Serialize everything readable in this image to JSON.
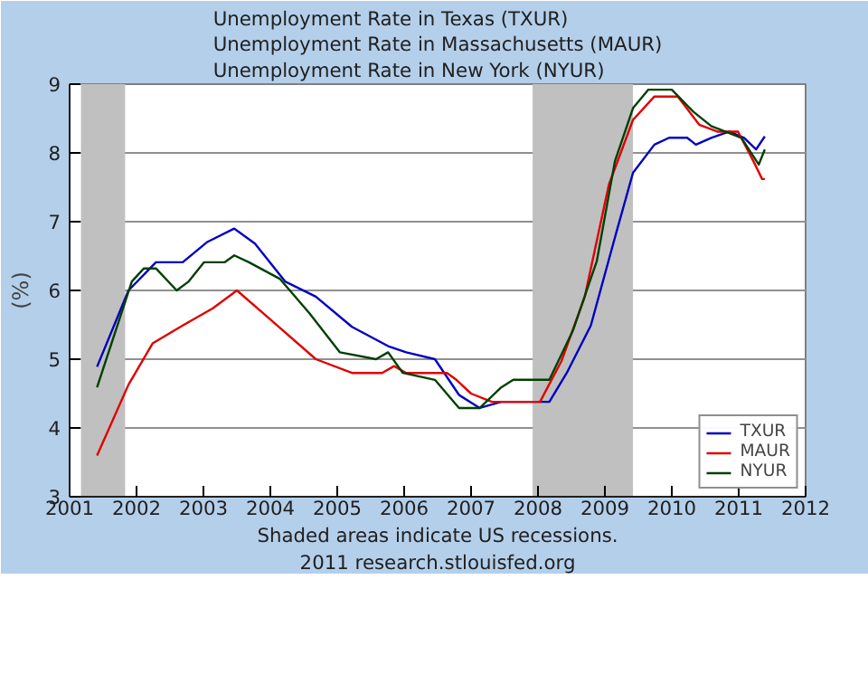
{
  "chart_data": {
    "type": "line",
    "title": "Unemployment Rate in Texas (TXUR)\nUnemployment Rate in Massachusetts (MAUR)\nUnemployment Rate in New York (NYUR)",
    "ylabel": "(%)",
    "annotations": [
      "Shaded areas indicate US recessions.",
      "2011 research.stlouisfed.org"
    ],
    "xlim": [
      2001,
      2012
    ],
    "xticks": [
      2001,
      2002,
      2003,
      2004,
      2005,
      2006,
      2007,
      2008,
      2009,
      2010,
      2011,
      2012
    ],
    "ylim": [
      3,
      9
    ],
    "yticks": [
      3,
      4,
      5,
      6,
      7,
      8,
      9
    ],
    "grid": "y",
    "legend": "bottom right",
    "line_style": "solid",
    "bands": [
      {
        "axis": "x",
        "from": 2001.17,
        "to": 2001.83,
        "color": "#c0c0c0"
      },
      {
        "axis": "x",
        "from": 2007.92,
        "to": 2009.42,
        "color": "#c0c0c0"
      }
    ],
    "series": [
      {
        "name": "TXUR",
        "color": "#0000c0",
        "x": [
          2001.41,
          2001.88,
          2002.29,
          2002.69,
          2003.05,
          2003.46,
          2003.77,
          2004.22,
          2004.68,
          2005.22,
          2005.76,
          2006.03,
          2006.46,
          2006.82,
          2007.13,
          2007.45,
          2008.17,
          2008.43,
          2008.79,
          2009.15,
          2009.42,
          2009.74,
          2009.96,
          2010.23,
          2010.36,
          2010.59,
          2010.86,
          2011.08,
          2011.26,
          2011.39
        ],
        "values": [
          4.89,
          6.0,
          6.41,
          6.41,
          6.7,
          6.9,
          6.68,
          6.13,
          5.91,
          5.47,
          5.19,
          5.1,
          5.0,
          4.48,
          4.29,
          4.38,
          4.38,
          4.8,
          5.49,
          6.77,
          7.71,
          8.12,
          8.22,
          8.22,
          8.12,
          8.22,
          8.31,
          8.22,
          8.05,
          8.24
        ]
      },
      {
        "name": "MAUR",
        "color": "#e00000",
        "x": [
          2001.41,
          2001.88,
          2002.24,
          2002.69,
          2003.14,
          2003.5,
          2003.95,
          2004.68,
          2005.22,
          2005.67,
          2005.85,
          2006.03,
          2006.64,
          2006.78,
          2007.0,
          2007.31,
          2008.03,
          2008.35,
          2008.7,
          2009.06,
          2009.42,
          2009.74,
          2010.09,
          2010.41,
          2010.68,
          2010.99,
          2011.22,
          2011.35,
          2011.39
        ],
        "values": [
          3.6,
          4.63,
          5.23,
          5.49,
          5.74,
          6.0,
          5.62,
          5.0,
          4.8,
          4.8,
          4.9,
          4.8,
          4.8,
          4.7,
          4.5,
          4.38,
          4.38,
          4.97,
          5.91,
          7.54,
          8.48,
          8.82,
          8.82,
          8.41,
          8.31,
          8.31,
          7.88,
          7.62,
          7.62
        ]
      },
      {
        "name": "NYUR",
        "color": "#004000",
        "x": [
          2001.41,
          2001.93,
          2002.11,
          2002.29,
          2002.6,
          2002.78,
          2003.01,
          2003.32,
          2003.46,
          2003.68,
          2004.14,
          2004.59,
          2005.04,
          2005.58,
          2005.76,
          2005.98,
          2006.46,
          2006.82,
          2007.13,
          2007.45,
          2007.63,
          2008.17,
          2008.52,
          2008.88,
          2009.15,
          2009.42,
          2009.65,
          2010.0,
          2010.32,
          2010.59,
          2011.04,
          2011.3,
          2011.39
        ],
        "values": [
          4.59,
          6.13,
          6.32,
          6.32,
          6.0,
          6.13,
          6.41,
          6.41,
          6.51,
          6.41,
          6.17,
          5.66,
          5.1,
          5.0,
          5.1,
          4.8,
          4.7,
          4.29,
          4.29,
          4.59,
          4.7,
          4.7,
          5.41,
          6.43,
          7.88,
          8.65,
          8.92,
          8.92,
          8.6,
          8.39,
          8.22,
          7.83,
          8.05
        ]
      }
    ]
  }
}
